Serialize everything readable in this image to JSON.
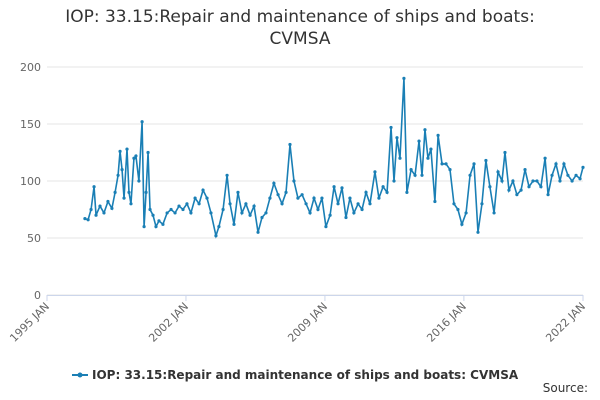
{
  "chart_data": {
    "type": "line",
    "title": "IOP: 33.15:Repair and maintenance of ships and boats: CVMSA",
    "source": "Source:",
    "x": [
      1996.91,
      1997.07,
      1997.22,
      1997.37,
      1997.47,
      1997.67,
      1997.87,
      1998.07,
      1998.27,
      1998.43,
      1998.58,
      1998.68,
      1998.78,
      1998.88,
      1999.03,
      1999.13,
      1999.23,
      1999.38,
      1999.48,
      1999.63,
      1999.79,
      1999.89,
      1999.99,
      2000.09,
      2000.19,
      2000.34,
      2000.49,
      2000.64,
      2000.84,
      2001.05,
      2001.25,
      2001.45,
      2001.65,
      2001.85,
      2002.05,
      2002.25,
      2002.46,
      2002.66,
      2002.86,
      2003.06,
      2003.26,
      2003.51,
      2003.66,
      2003.87,
      2004.07,
      2004.22,
      2004.42,
      2004.62,
      2004.82,
      2005.02,
      2005.23,
      2005.43,
      2005.63,
      2005.83,
      2006.03,
      2006.23,
      2006.43,
      2006.64,
      2006.84,
      2007.04,
      2007.24,
      2007.44,
      2007.64,
      2007.85,
      2008.05,
      2008.25,
      2008.45,
      2008.65,
      2008.85,
      2009.05,
      2009.26,
      2009.46,
      2009.66,
      2009.86,
      2010.06,
      2010.26,
      2010.46,
      2010.67,
      2010.87,
      2011.07,
      2011.27,
      2011.52,
      2011.72,
      2011.93,
      2012.13,
      2012.33,
      2012.48,
      2012.63,
      2012.78,
      2012.98,
      2013.13,
      2013.34,
      2013.54,
      2013.74,
      2013.89,
      2014.04,
      2014.19,
      2014.34,
      2014.54,
      2014.7,
      2014.9,
      2015.1,
      2015.3,
      2015.5,
      2015.7,
      2015.9,
      2016.11,
      2016.31,
      2016.51,
      2016.71,
      2016.91,
      2017.11,
      2017.31,
      2017.52,
      2017.72,
      2017.92,
      2018.07,
      2018.27,
      2018.47,
      2018.67,
      2018.88,
      2019.08,
      2019.28,
      2019.48,
      2019.68,
      2019.88,
      2020.09,
      2020.24,
      2020.44,
      2020.64,
      2020.84,
      2021.04,
      2021.24,
      2021.45,
      2021.65,
      2021.85,
      2022.0
    ],
    "series": [
      {
        "name": "IOP: 33.15:Repair and maintenance of ships and boats: CVMSA",
        "color": "#1a7fb5",
        "values": [
          67,
          66,
          75,
          95,
          70,
          78,
          72,
          82,
          76,
          90,
          105,
          126,
          110,
          85,
          128,
          90,
          80,
          120,
          122,
          100,
          152,
          60,
          90,
          125,
          75,
          70,
          60,
          65,
          62,
          72,
          75,
          72,
          78,
          75,
          80,
          72,
          85,
          80,
          92,
          85,
          72,
          52,
          60,
          75,
          105,
          80,
          62,
          90,
          72,
          80,
          70,
          78,
          55,
          68,
          72,
          85,
          98,
          88,
          80,
          90,
          132,
          100,
          85,
          88,
          80,
          72,
          85,
          75,
          85,
          60,
          70,
          95,
          80,
          94,
          68,
          85,
          72,
          80,
          75,
          90,
          80,
          108,
          85,
          95,
          90,
          147,
          100,
          138,
          120,
          190,
          90,
          110,
          105,
          135,
          105,
          145,
          120,
          128,
          82,
          140,
          115,
          115,
          110,
          80,
          75,
          62,
          72,
          105,
          115,
          55,
          80,
          118,
          95,
          72,
          108,
          100,
          125,
          92,
          100,
          88,
          92,
          110,
          95,
          100,
          100,
          95,
          120,
          88,
          105,
          115,
          100,
          115,
          105,
          100,
          105,
          102,
          112
        ]
      }
    ],
    "xlim": [
      1995,
      2022
    ],
    "xticks": [
      {
        "value": 1995,
        "label": "1995 JAN"
      },
      {
        "value": 2002,
        "label": "2002 JAN"
      },
      {
        "value": 2009,
        "label": "2009 JAN"
      },
      {
        "value": 2016,
        "label": "2016 JAN"
      },
      {
        "value": 2022,
        "label": "2022 JAN"
      }
    ],
    "ylim": [
      0,
      200
    ],
    "yticks": [
      0,
      50,
      100,
      150,
      200
    ],
    "grid": true
  }
}
